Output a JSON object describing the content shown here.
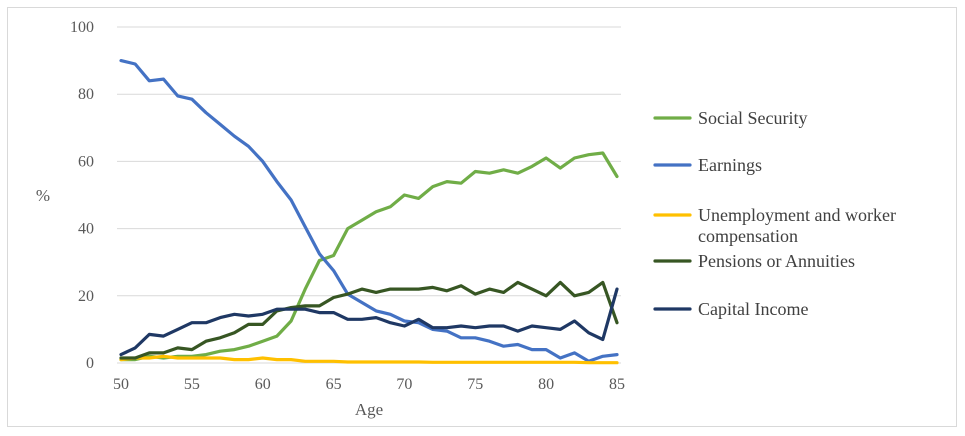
{
  "chart_data": {
    "type": "line",
    "xlabel": "Age",
    "ylabel": "%",
    "xlim": [
      50,
      85
    ],
    "ylim": [
      0,
      100
    ],
    "x_ticks": [
      "50",
      "55",
      "60",
      "65",
      "70",
      "75",
      "80",
      "85"
    ],
    "y_ticks": [
      "0",
      "20",
      "40",
      "60",
      "80",
      "100"
    ],
    "grid": "horizontal",
    "legend_position": "right",
    "x": [
      50,
      51,
      52,
      53,
      54,
      55,
      56,
      57,
      58,
      59,
      60,
      61,
      62,
      63,
      64,
      65,
      66,
      67,
      68,
      69,
      70,
      71,
      72,
      73,
      74,
      75,
      76,
      77,
      78,
      79,
      80,
      81,
      82,
      83,
      84,
      85
    ],
    "series": [
      {
        "name": "Social Security",
        "color": "#70ad47",
        "values": [
          1,
          1,
          2,
          1.5,
          2,
          2,
          2.5,
          3.5,
          4,
          5,
          6.5,
          8,
          12.5,
          22,
          30.5,
          32,
          40,
          42.5,
          45,
          46.5,
          50,
          49,
          52.5,
          54,
          53.5,
          57,
          56.5,
          57.5,
          56.5,
          58.5,
          61,
          58,
          61,
          62,
          62.5,
          55.5
        ]
      },
      {
        "name": "Earnings",
        "color": "#4472c4",
        "values": [
          90,
          89,
          84,
          84.5,
          79.5,
          78.5,
          74.5,
          71,
          67.5,
          64.5,
          60,
          54,
          48.5,
          40.5,
          32.5,
          27.5,
          20.5,
          18,
          15.5,
          14.5,
          12.5,
          12,
          10,
          9.5,
          7.5,
          7.5,
          6.5,
          5,
          5.5,
          4,
          4,
          1.5,
          3,
          0.5,
          2,
          2.5
        ]
      },
      {
        "name": "Unemployment and worker compensation",
        "label_lines": [
          "Unemployment and worker",
          "compensation"
        ],
        "color": "#ffc000",
        "values": [
          1,
          1.5,
          1.5,
          2,
          1.5,
          1.5,
          1.5,
          1.5,
          1,
          1,
          1.5,
          1,
          1,
          0.5,
          0.5,
          0.5,
          0.3,
          0.3,
          0.3,
          0.3,
          0.3,
          0.3,
          0.2,
          0.2,
          0.2,
          0.2,
          0.2,
          0.2,
          0.2,
          0.2,
          0.2,
          0.2,
          0.2,
          0.1,
          0.1,
          0.1
        ]
      },
      {
        "name": "Pensions or Annuities",
        "color": "#375623",
        "values": [
          1.5,
          1.5,
          3,
          3,
          4.5,
          4,
          6.5,
          7.5,
          9,
          11.5,
          11.5,
          15.5,
          16.5,
          17,
          17,
          19.5,
          20.5,
          22,
          21,
          22,
          22,
          22,
          22.5,
          21.5,
          23,
          20.5,
          22,
          21,
          24,
          22,
          20,
          24,
          20,
          21,
          24,
          12
        ]
      },
      {
        "name": "Capital Income",
        "color": "#1f3864",
        "values": [
          2.5,
          4.5,
          8.5,
          8,
          10,
          12,
          12,
          13.5,
          14.5,
          14,
          14.5,
          16,
          16,
          16,
          15,
          15,
          13,
          13,
          13.5,
          12,
          11,
          13,
          10.5,
          10.5,
          11,
          10.5,
          11,
          11,
          9.5,
          11,
          10.5,
          10,
          12.5,
          9,
          7,
          22
        ]
      }
    ]
  }
}
